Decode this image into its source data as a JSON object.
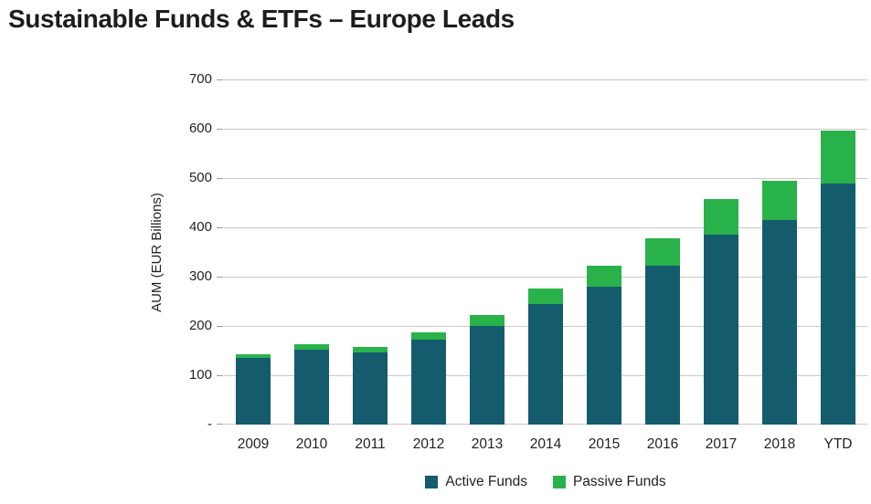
{
  "title": "Sustainable Funds & ETFs – Europe Leads",
  "colors": {
    "active_funds": "#155b6e",
    "passive_funds": "#29b24a",
    "gridline": "#c9c9c9",
    "text": "#231f20",
    "background": "#ffffff"
  },
  "chart_data": {
    "type": "bar",
    "stacked": true,
    "title": "Sustainable Funds & ETFs – Europe Leads",
    "xlabel": "",
    "ylabel": "AUM (EUR Billions)",
    "ylim": [
      0,
      700
    ],
    "ytick_step": 100,
    "ytick_labels": [
      "-",
      "100",
      "200",
      "300",
      "400",
      "500",
      "600",
      "700"
    ],
    "grid": true,
    "legend_position": "bottom",
    "categories": [
      "2009",
      "2010",
      "2011",
      "2012",
      "2013",
      "2014",
      "2015",
      "2016",
      "2017",
      "2018",
      "YTD"
    ],
    "series": [
      {
        "name": "Active Funds",
        "color": "#155b6e",
        "values": [
          135,
          152,
          147,
          172,
          200,
          245,
          280,
          322,
          385,
          415,
          488
        ]
      },
      {
        "name": "Passive Funds",
        "color": "#29b24a",
        "values": [
          8,
          11,
          10,
          16,
          22,
          31,
          43,
          55,
          73,
          80,
          109
        ]
      }
    ],
    "totals": [
      143,
      163,
      157,
      188,
      222,
      276,
      323,
      377,
      458,
      495,
      597
    ]
  }
}
